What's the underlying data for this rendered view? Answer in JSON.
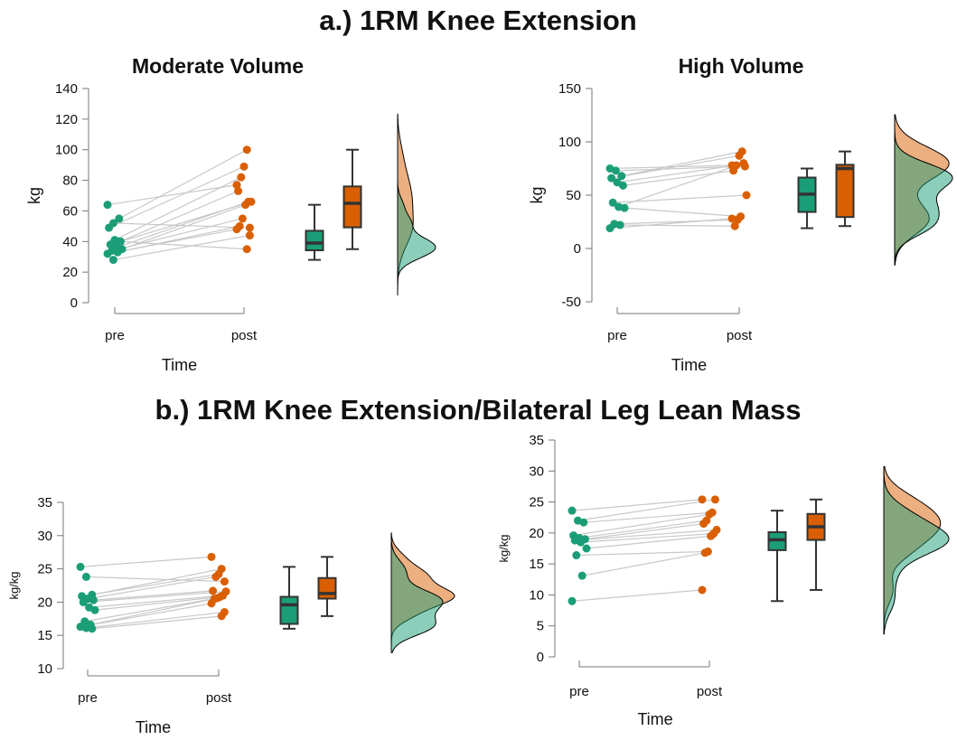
{
  "titles": {
    "a": "a.) 1RM Knee Extension",
    "b": "b.) 1RM Knee Extension/Bilateral Leg Lean Mass"
  },
  "colors": {
    "pre": "#1b9e77",
    "post": "#d95f02"
  },
  "chart_data": [
    {
      "type": "raincloud",
      "title": "Moderate Volume",
      "xlabel": "Time",
      "ylabel": "kg",
      "categories": [
        "pre",
        "post"
      ],
      "ylim": [
        0,
        140
      ],
      "yticks": [
        0,
        20,
        40,
        60,
        80,
        100,
        120,
        140
      ],
      "pre": [
        64,
        52,
        55,
        49,
        41,
        40,
        38,
        36,
        35,
        34,
        33,
        32,
        28,
        40
      ],
      "post": [
        77,
        49,
        100,
        89,
        82,
        73,
        66,
        66,
        64,
        55,
        50,
        48,
        44,
        35
      ]
    },
    {
      "type": "raincloud",
      "title": "High Volume",
      "xlabel": "Time",
      "ylabel": "kg",
      "categories": [
        "pre",
        "post"
      ],
      "ylim": [
        -50,
        150
      ],
      "yticks": [
        -50,
        0,
        50,
        100,
        150
      ],
      "pre": [
        75,
        73,
        68,
        66,
        62,
        59,
        43,
        39,
        38,
        23,
        22,
        19
      ],
      "post": [
        78,
        77,
        91,
        87,
        78,
        73,
        50,
        80,
        30,
        27,
        21,
        28
      ]
    },
    {
      "type": "raincloud",
      "title": "",
      "xlabel": "Time",
      "ylabel": "kg/kg",
      "categories": [
        "pre",
        "post"
      ],
      "ylim": [
        10,
        35
      ],
      "yticks": [
        10,
        15,
        20,
        25,
        30,
        35
      ],
      "pre": [
        25.3,
        23.8,
        21.1,
        20.9,
        20.5,
        20.3,
        20.0,
        19.2,
        18.8,
        17.1,
        16.6,
        16.3,
        16.1,
        16.0
      ],
      "post": [
        26.8,
        23.1,
        25.0,
        24.2,
        23.8,
        21.7,
        21.6,
        21.0,
        20.8,
        20.6,
        20.5,
        19.8,
        18.5,
        17.9
      ]
    },
    {
      "type": "raincloud",
      "title": "",
      "xlabel": "Time",
      "ylabel": "kg/kg",
      "categories": [
        "pre",
        "post"
      ],
      "ylim": [
        0,
        35
      ],
      "yticks": [
        0,
        5,
        10,
        15,
        20,
        25,
        30,
        35
      ],
      "pre": [
        23.6,
        22.0,
        21.7,
        19.6,
        19.2,
        19.0,
        18.8,
        18.5,
        17.5,
        16.4,
        13.1,
        9.0
      ],
      "post": [
        25.4,
        25.4,
        23.3,
        23.0,
        22.0,
        21.5,
        20.5,
        19.9,
        19.5,
        17.0,
        16.8,
        10.8
      ]
    }
  ]
}
